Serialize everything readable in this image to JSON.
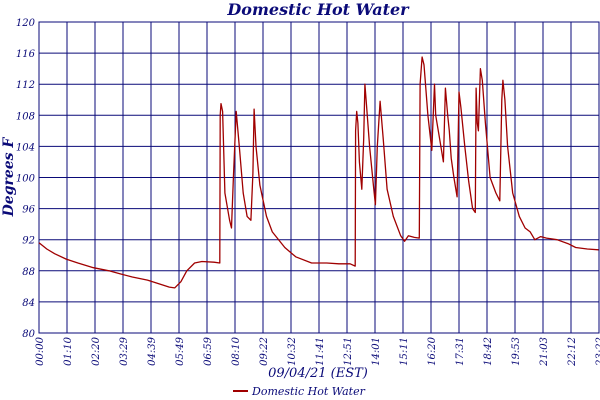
{
  "chart_data": {
    "type": "line",
    "title": "Domestic Hot Water",
    "xlabel": "09/04/21 (EST)",
    "ylabel": "Degrees F",
    "ylim": [
      80,
      120
    ],
    "y_ticks": [
      "80",
      "84",
      "88",
      "92",
      "96",
      "100",
      "104",
      "108",
      "112",
      "116",
      "120"
    ],
    "x_ticks": [
      "00:00",
      "01:10",
      "02:20",
      "03:29",
      "04:39",
      "05:49",
      "06:59",
      "08:10",
      "09:22",
      "10:32",
      "11:41",
      "12:51",
      "14:01",
      "15:11",
      "16:20",
      "17:31",
      "18:42",
      "19:53",
      "21:03",
      "22:12",
      "23:22"
    ],
    "grid": true,
    "legend_position": "bottom-center",
    "colors": {
      "axis": "#0a0a78",
      "grid": "#0a0a78",
      "series": "#a00000"
    },
    "series": [
      {
        "name": "Domestic Hot Water",
        "points": [
          [
            "00:00",
            91.6
          ],
          [
            "00:20",
            90.8
          ],
          [
            "00:40",
            90.2
          ],
          [
            "01:10",
            89.5
          ],
          [
            "01:40",
            89.0
          ],
          [
            "02:20",
            88.4
          ],
          [
            "03:00",
            88.0
          ],
          [
            "03:29",
            87.6
          ],
          [
            "04:00",
            87.2
          ],
          [
            "04:39",
            86.8
          ],
          [
            "05:10",
            86.3
          ],
          [
            "05:35",
            85.9
          ],
          [
            "05:49",
            85.8
          ],
          [
            "06:05",
            86.6
          ],
          [
            "06:20",
            88.0
          ],
          [
            "06:40",
            89.0
          ],
          [
            "06:59",
            89.2
          ],
          [
            "07:30",
            89.1
          ],
          [
            "07:45",
            89.0
          ],
          [
            "07:46",
            108.0
          ],
          [
            "07:48",
            109.5
          ],
          [
            "07:52",
            108.5
          ],
          [
            "07:58",
            98.0
          ],
          [
            "08:10",
            94.5
          ],
          [
            "08:15",
            93.5
          ],
          [
            "08:20",
            100.0
          ],
          [
            "08:27",
            108.5
          ],
          [
            "08:35",
            104.0
          ],
          [
            "08:45",
            98.0
          ],
          [
            "08:55",
            95.0
          ],
          [
            "09:05",
            94.5
          ],
          [
            "09:10",
            100.5
          ],
          [
            "09:13",
            108.8
          ],
          [
            "09:18",
            104.0
          ],
          [
            "09:28",
            99.0
          ],
          [
            "09:45",
            95.0
          ],
          [
            "10:00",
            93.0
          ],
          [
            "10:32",
            91.0
          ],
          [
            "11:00",
            89.8
          ],
          [
            "11:41",
            89.0
          ],
          [
            "12:20",
            89.0
          ],
          [
            "12:51",
            88.9
          ],
          [
            "13:20",
            88.9
          ],
          [
            "13:33",
            88.6
          ],
          [
            "13:34",
            106.0
          ],
          [
            "13:37",
            108.5
          ],
          [
            "13:40",
            107.0
          ],
          [
            "13:44",
            102.0
          ],
          [
            "13:50",
            98.5
          ],
          [
            "13:55",
            105.0
          ],
          [
            "13:58",
            112.0
          ],
          [
            "14:01",
            110.0
          ],
          [
            "14:10",
            104.0
          ],
          [
            "14:20",
            99.0
          ],
          [
            "14:25",
            96.5
          ],
          [
            "14:30",
            104.0
          ],
          [
            "14:37",
            109.8
          ],
          [
            "14:45",
            105.0
          ],
          [
            "14:55",
            98.5
          ],
          [
            "15:11",
            95.0
          ],
          [
            "15:30",
            92.5
          ],
          [
            "15:40",
            91.8
          ],
          [
            "15:50",
            92.5
          ],
          [
            "16:05",
            92.3
          ],
          [
            "16:18",
            92.2
          ],
          [
            "16:20",
            112.0
          ],
          [
            "16:25",
            115.5
          ],
          [
            "16:30",
            114.5
          ],
          [
            "16:40",
            108.0
          ],
          [
            "16:50",
            103.5
          ],
          [
            "16:57",
            112.0
          ],
          [
            "17:00",
            108.0
          ],
          [
            "17:10",
            105.0
          ],
          [
            "17:20",
            102.0
          ],
          [
            "17:25",
            111.5
          ],
          [
            "17:31",
            108.0
          ],
          [
            "17:35",
            106.0
          ],
          [
            "17:40",
            102.5
          ],
          [
            "17:47",
            100.0
          ],
          [
            "17:55",
            97.5
          ],
          [
            "18:00",
            111.0
          ],
          [
            "18:05",
            109.0
          ],
          [
            "18:15",
            104.0
          ],
          [
            "18:25",
            99.5
          ],
          [
            "18:35",
            96.0
          ],
          [
            "18:42",
            95.5
          ],
          [
            "18:44",
            111.5
          ],
          [
            "18:47",
            107.0
          ],
          [
            "18:50",
            106.0
          ],
          [
            "18:55",
            114.0
          ],
          [
            "19:00",
            112.5
          ],
          [
            "19:08",
            107.0
          ],
          [
            "19:20",
            100.0
          ],
          [
            "19:35",
            98.0
          ],
          [
            "19:45",
            97.0
          ],
          [
            "19:50",
            110.0
          ],
          [
            "19:53",
            112.5
          ],
          [
            "19:58",
            110.0
          ],
          [
            "20:05",
            104.0
          ],
          [
            "20:18",
            98.0
          ],
          [
            "20:35",
            95.0
          ],
          [
            "20:50",
            93.5
          ],
          [
            "21:03",
            93.0
          ],
          [
            "21:15",
            92.0
          ],
          [
            "21:30",
            92.4
          ],
          [
            "21:45",
            92.2
          ],
          [
            "22:12",
            92.0
          ],
          [
            "22:40",
            91.5
          ],
          [
            "23:00",
            91.0
          ],
          [
            "23:30",
            90.8
          ],
          [
            "23:59",
            90.7
          ]
        ]
      }
    ]
  }
}
